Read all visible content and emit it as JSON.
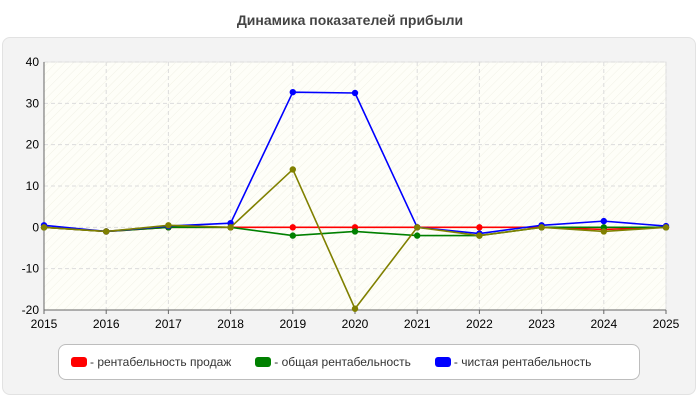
{
  "chart_data": {
    "type": "line",
    "title": "Динамика показателей прибыли",
    "xlabel": "",
    "ylabel": "",
    "x": [
      "2015",
      "2016",
      "2017",
      "2018",
      "2019",
      "2020",
      "2021",
      "2022",
      "2023",
      "2024",
      "2025"
    ],
    "ylim": [
      -20,
      40
    ],
    "yticks": [
      -20,
      -10,
      0,
      10,
      20,
      30,
      40
    ],
    "grid": true,
    "legend_position": "bottom",
    "series": [
      {
        "name": "- рентабельность продаж",
        "color": "#ff0000",
        "values": [
          0,
          -1,
          0,
          0,
          0,
          0,
          0,
          0,
          0,
          -0.5,
          0
        ]
      },
      {
        "name": "- общая рентабельность",
        "color": "#008000",
        "values": [
          0,
          -1,
          0,
          0,
          -2,
          -1,
          -2,
          -2,
          0,
          0,
          0
        ]
      },
      {
        "name": "- чистая рентабельность",
        "color": "#0000ff",
        "values": [
          0.5,
          -1,
          0.3,
          1,
          32.7,
          32.5,
          0,
          -1.5,
          0.5,
          1.5,
          0.3
        ]
      },
      {
        "name": "",
        "color": "#808000",
        "values": [
          0,
          -1,
          0.5,
          0,
          14,
          -19.7,
          0,
          -2,
          0,
          -1,
          0
        ]
      }
    ]
  }
}
